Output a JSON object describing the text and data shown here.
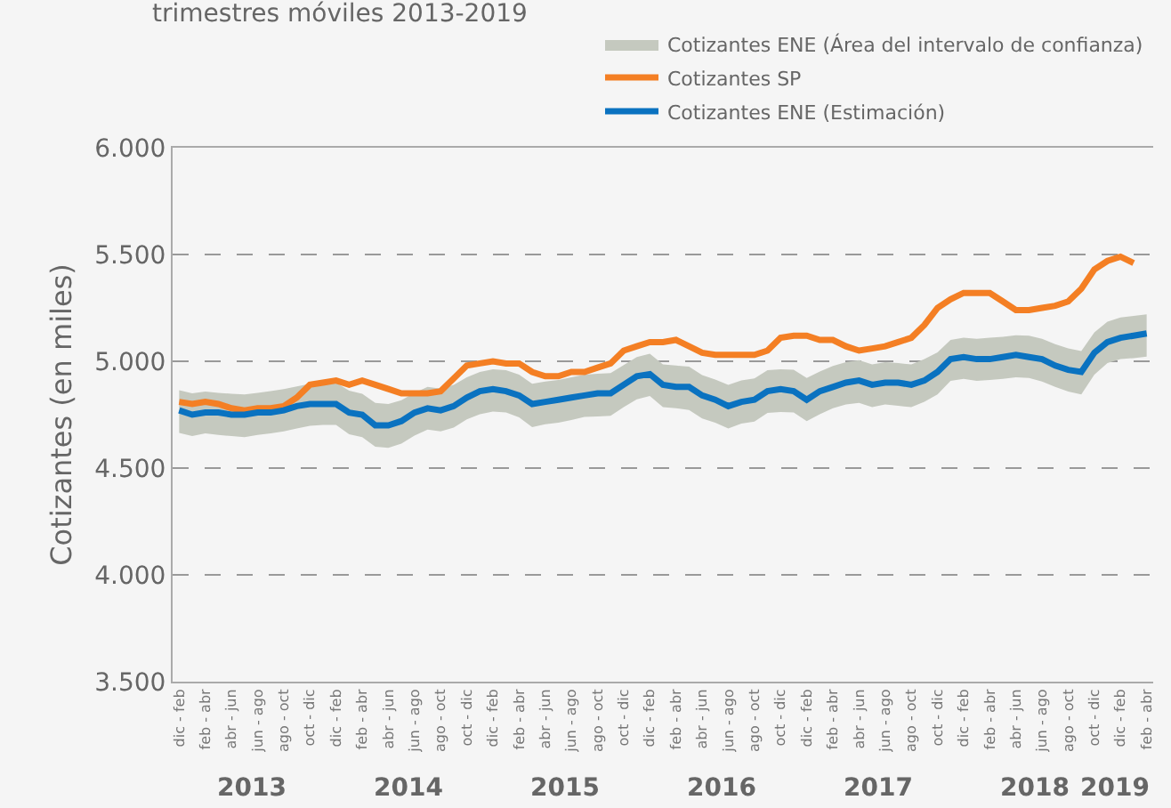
{
  "chart_data": {
    "type": "line",
    "title": "trimestres móviles 2013-2019",
    "ylabel": "Cotizantes (en miles)",
    "categories": [
      "dic - feb",
      null,
      "feb - abr",
      null,
      "abr - jun",
      null,
      "jun - ago",
      null,
      "ago - oct",
      null,
      "oct - dic",
      null,
      "dic - feb",
      null,
      "feb - abr",
      null,
      "abr - jun",
      null,
      "jun - ago",
      null,
      "ago - oct",
      null,
      "oct - dic",
      null,
      "dic - feb",
      null,
      "feb - abr",
      null,
      "abr - jun",
      null,
      "jun - ago",
      null,
      "ago - oct",
      null,
      "oct - dic",
      null,
      "dic - feb",
      null,
      "feb - abr",
      null,
      "abr - jun",
      null,
      "jun - ago",
      null,
      "ago - oct",
      null,
      "oct - dic",
      null,
      "dic - feb",
      null,
      "feb - abr",
      null,
      "abr - jun",
      null,
      "jun - ago",
      null,
      "ago - oct",
      null,
      "oct - dic",
      null,
      "dic - feb",
      null,
      "feb - abr",
      null,
      "abr - jun",
      null,
      "jun - ago",
      null,
      "ago - oct",
      null,
      "oct - dic",
      null,
      "dic - feb",
      null,
      "feb - abr"
    ],
    "annotations": [
      "2013",
      "2014",
      "2015",
      "2016",
      "2017",
      "2018",
      "2019"
    ],
    "series": [
      {
        "name": "Cotizantes ENE (Área del intervalo de confianza)",
        "type": "area",
        "color": "#c5c9bf",
        "values": [
          null,
          null,
          null,
          null,
          null,
          null,
          null,
          null,
          null,
          null,
          null,
          null,
          null,
          null,
          null,
          null,
          null,
          null,
          null,
          null,
          null,
          null,
          null,
          null,
          null,
          null,
          null,
          null,
          null,
          null,
          null,
          null,
          null,
          null,
          null,
          null,
          null,
          null,
          null,
          null,
          null,
          null,
          null,
          null,
          null,
          null,
          null,
          null,
          null,
          null,
          null,
          null,
          null,
          null,
          null,
          null,
          null,
          null,
          null,
          null,
          null,
          null,
          null,
          null,
          null,
          null,
          null,
          null,
          null,
          null,
          null,
          null,
          null,
          null,
          null
        ],
        "upper": [
          4865,
          4850,
          4858,
          4852,
          4848,
          4845,
          4852,
          4860,
          4870,
          4882,
          4895,
          4900,
          4900,
          4862,
          4848,
          4805,
          4800,
          4818,
          4852,
          4880,
          4872,
          4890,
          4925,
          4950,
          4962,
          4958,
          4938,
          4895,
          4905,
          4912,
          4925,
          4938,
          4942,
          4945,
          4982,
          5020,
          5035,
          4985,
          4980,
          4975,
          4935,
          4915,
          4890,
          4910,
          4920,
          4958,
          4962,
          4960,
          4922,
          4952,
          4978,
          4996,
          5005,
          4985,
          4996,
          4992,
          4985,
          5010,
          5042,
          5100,
          5110,
          5105,
          5110,
          5115,
          5122,
          5120,
          5105,
          5080,
          5060,
          5048,
          5135,
          5185,
          5205,
          5212,
          5220
        ],
        "lower": [
          4665,
          4650,
          4662,
          4655,
          4650,
          4645,
          4655,
          4662,
          4672,
          4685,
          4698,
          4702,
          4702,
          4658,
          4645,
          4600,
          4595,
          4615,
          4652,
          4680,
          4672,
          4690,
          4728,
          4752,
          4765,
          4760,
          4738,
          4692,
          4705,
          4712,
          4725,
          4740,
          4742,
          4745,
          4785,
          4822,
          4838,
          4785,
          4780,
          4772,
          4732,
          4712,
          4685,
          4708,
          4718,
          4758,
          4762,
          4760,
          4720,
          4752,
          4780,
          4798,
          4805,
          4785,
          4798,
          4792,
          4785,
          4810,
          4845,
          4908,
          4918,
          4908,
          4912,
          4918,
          4925,
          4922,
          4905,
          4880,
          4858,
          4845,
          4938,
          4992,
          5010,
          5015,
          5022
        ]
      },
      {
        "name": "Cotizantes SP",
        "color": "#f47f24",
        "values": [
          4810,
          4800,
          4810,
          4800,
          4780,
          4770,
          4780,
          4780,
          4790,
          4830,
          4890,
          4900,
          4910,
          4890,
          4910,
          4890,
          4870,
          4850,
          4850,
          4850,
          4860,
          4920,
          4980,
          4990,
          5000,
          4990,
          4990,
          4950,
          4930,
          4930,
          4950,
          4950,
          4970,
          4990,
          5050,
          5070,
          5090,
          5090,
          5100,
          5070,
          5040,
          5030,
          5030,
          5030,
          5030,
          5050,
          5110,
          5120,
          5120,
          5100,
          5100,
          5070,
          5050,
          5060,
          5070,
          5090,
          5110,
          5170,
          5250,
          5290,
          5320,
          5320,
          5320,
          5280,
          5240,
          5240,
          5250,
          5260,
          5280,
          5340,
          5430,
          5470,
          5490,
          5460,
          null
        ]
      },
      {
        "name": "Cotizantes ENE (Estimación)",
        "color": "#0a72c0",
        "values": [
          4770,
          4750,
          4760,
          4760,
          4750,
          4750,
          4760,
          4760,
          4770,
          4790,
          4800,
          4800,
          4800,
          4760,
          4750,
          4700,
          4700,
          4720,
          4760,
          4780,
          4770,
          4790,
          4830,
          4860,
          4870,
          4860,
          4840,
          4800,
          4810,
          4820,
          4830,
          4840,
          4850,
          4850,
          4890,
          4930,
          4940,
          4890,
          4880,
          4880,
          4840,
          4820,
          4790,
          4810,
          4820,
          4860,
          4870,
          4860,
          4820,
          4860,
          4880,
          4900,
          4910,
          4890,
          4900,
          4900,
          4890,
          4910,
          4950,
          5010,
          5020,
          5010,
          5010,
          5020,
          5030,
          5020,
          5010,
          4980,
          4960,
          4950,
          5040,
          5090,
          5110,
          5120,
          5130
        ]
      }
    ],
    "ylim": [
      3500,
      6000
    ],
    "yticks": [
      {
        "value": 3500,
        "label": "3.500"
      },
      {
        "value": 4000,
        "label": "4.000"
      },
      {
        "value": 4500,
        "label": "4.500"
      },
      {
        "value": 5000,
        "label": "5.000"
      },
      {
        "value": 5500,
        "label": "5.500"
      },
      {
        "value": 6000,
        "label": "6.000"
      }
    ],
    "grid": "y",
    "legend": "top right",
    "marker": "none",
    "line_style": "solid"
  }
}
